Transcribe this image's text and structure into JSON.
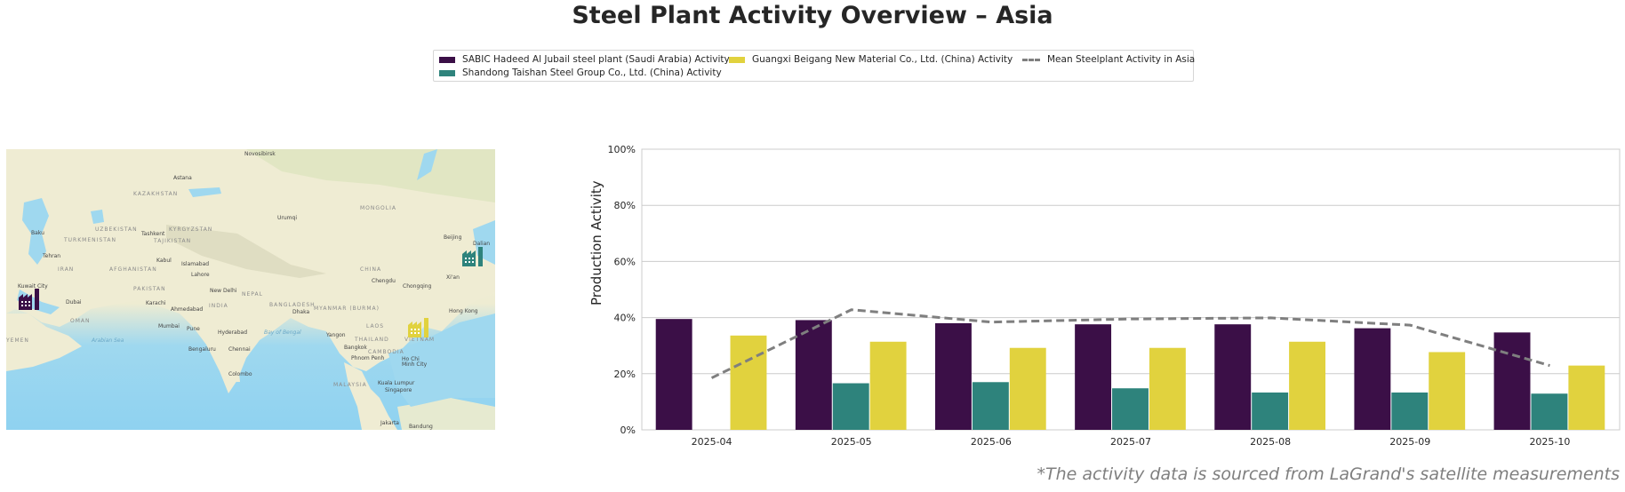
{
  "title": "Steel Plant Activity Overview – Asia",
  "legend": [
    {
      "label": "SABIC Hadeed Al Jubail steel plant (Saudi Arabia) Activity",
      "color": "#3b0f47",
      "type": "bar"
    },
    {
      "label": "Shandong Taishan Steel Group Co., Ltd. (China) Activity",
      "color": "#2e837c",
      "type": "bar"
    },
    {
      "label": "Guangxi Beigang New Material Co., Ltd. (China) Activity",
      "color": "#e1d23e",
      "type": "bar"
    },
    {
      "label": "Mean Steelplant Activity in Asia",
      "color": "#7f7f7f",
      "type": "dashed-line"
    }
  ],
  "map": {
    "labels": {
      "novosibirsk": "Novosibirsk",
      "astana": "Astana",
      "kazakhstan": "KAZAKHSTAN",
      "mongolia": "MONGOLIA",
      "urumqi": "Urumqi",
      "uzbekistan": "UZBEKISTAN",
      "kyrgyzstan": "KYRGYZSTAN",
      "tashkent": "Tashkent",
      "tajikistan": "TAJIKISTAN",
      "turkmenistan": "TURKMENISTAN",
      "baku": "Baku",
      "tehran": "Tehran",
      "iran": "IRAN",
      "afghanistan": "AFGHANISTAN",
      "kabul": "Kabul",
      "islamabad": "Islamabad",
      "lahore": "Lahore",
      "china": "CHINA",
      "beijing": "Beijing",
      "chengdu": "Chengdu",
      "chongqing": "Chongqing",
      "kuwait": "Kuwait City",
      "dubai": "Dubai",
      "pakistan": "PAKISTAN",
      "karachi": "Karachi",
      "new_delhi": "New Delhi",
      "nepal": "NEPAL",
      "bangladesh": "BANGLADESH",
      "myanmar": "MYANMAR (BURMA)",
      "dhaka": "Dhaka",
      "india": "INDIA",
      "ahmedabad": "Ahmedabad",
      "oman": "OMAN",
      "mumbai": "Mumbai",
      "pune": "Pune",
      "hyderabad": "Hyderabad",
      "bay_of_bengal": "Bay of Bengal",
      "arabian_sea": "Arabian Sea",
      "yemen": "YEMEN",
      "bengaluru": "Bengaluru",
      "chennai": "Chennai",
      "yangon": "Yangon",
      "thailand": "THAILAND",
      "laos": "LAOS",
      "bangkok": "Bangkok",
      "cambodia": "CAMBODIA",
      "phnom_penh": "Phnom Penh",
      "ho_chi_minh": "Ho Chi Minh City",
      "vietnam": "VIETNAM",
      "hong_kong": "Hong Kong",
      "colombo": "Colombo",
      "kuala_lumpur": "Kuala Lumpur",
      "singapore": "Singapore",
      "malaysia": "MALAYSIA",
      "jakarta": "Jakarta",
      "bandung": "Bandung",
      "xian": "Xi'an",
      "dalian": "Dalian"
    },
    "markers": [
      {
        "name": "SABIC Hadeed Al Jubail",
        "color": "#3b0f47"
      },
      {
        "name": "Shandong Taishan Steel",
        "color": "#2e837c"
      },
      {
        "name": "Guangxi Beigang",
        "color": "#e1d23e"
      }
    ]
  },
  "chart_data": {
    "type": "bar",
    "title": "",
    "xlabel": "",
    "ylabel": "Production Activity",
    "ylim": [
      0,
      100
    ],
    "yticks": [
      0,
      20,
      40,
      60,
      80,
      100
    ],
    "ytick_labels": [
      "0%",
      "20%",
      "40%",
      "60%",
      "80%",
      "100%"
    ],
    "grid": true,
    "legend_position": "top-center",
    "categories": [
      "2025-04",
      "2025-05",
      "2025-06",
      "2025-07",
      "2025-08",
      "2025-09",
      "2025-10"
    ],
    "series": [
      {
        "name": "SABIC Hadeed Al Jubail steel plant (Saudi Arabia) Activity",
        "type": "bar",
        "color": "#3b0f47",
        "values": [
          39.5,
          39.1,
          38.0,
          37.6,
          37.6,
          36.2,
          34.7
        ]
      },
      {
        "name": "Shandong Taishan Steel Group Co., Ltd. (China) Activity",
        "type": "bar",
        "color": "#2e837c",
        "values": [
          null,
          16.6,
          17.0,
          14.8,
          13.3,
          13.3,
          12.9
        ]
      },
      {
        "name": "Guangxi Beigang New Material Co., Ltd. (China) Activity",
        "type": "bar",
        "color": "#e1d23e",
        "values": [
          33.6,
          31.4,
          29.2,
          29.2,
          31.4,
          27.7,
          22.9
        ]
      },
      {
        "name": "Mean Steelplant Activity in Asia",
        "type": "line",
        "style": "dashed",
        "color": "#7f7f7f",
        "values": [
          18.5,
          42.8,
          38.4,
          39.5,
          39.9,
          37.3,
          22.9
        ]
      }
    ]
  },
  "footnote": "*The activity data is sourced from LaGrand's satellite measurements"
}
